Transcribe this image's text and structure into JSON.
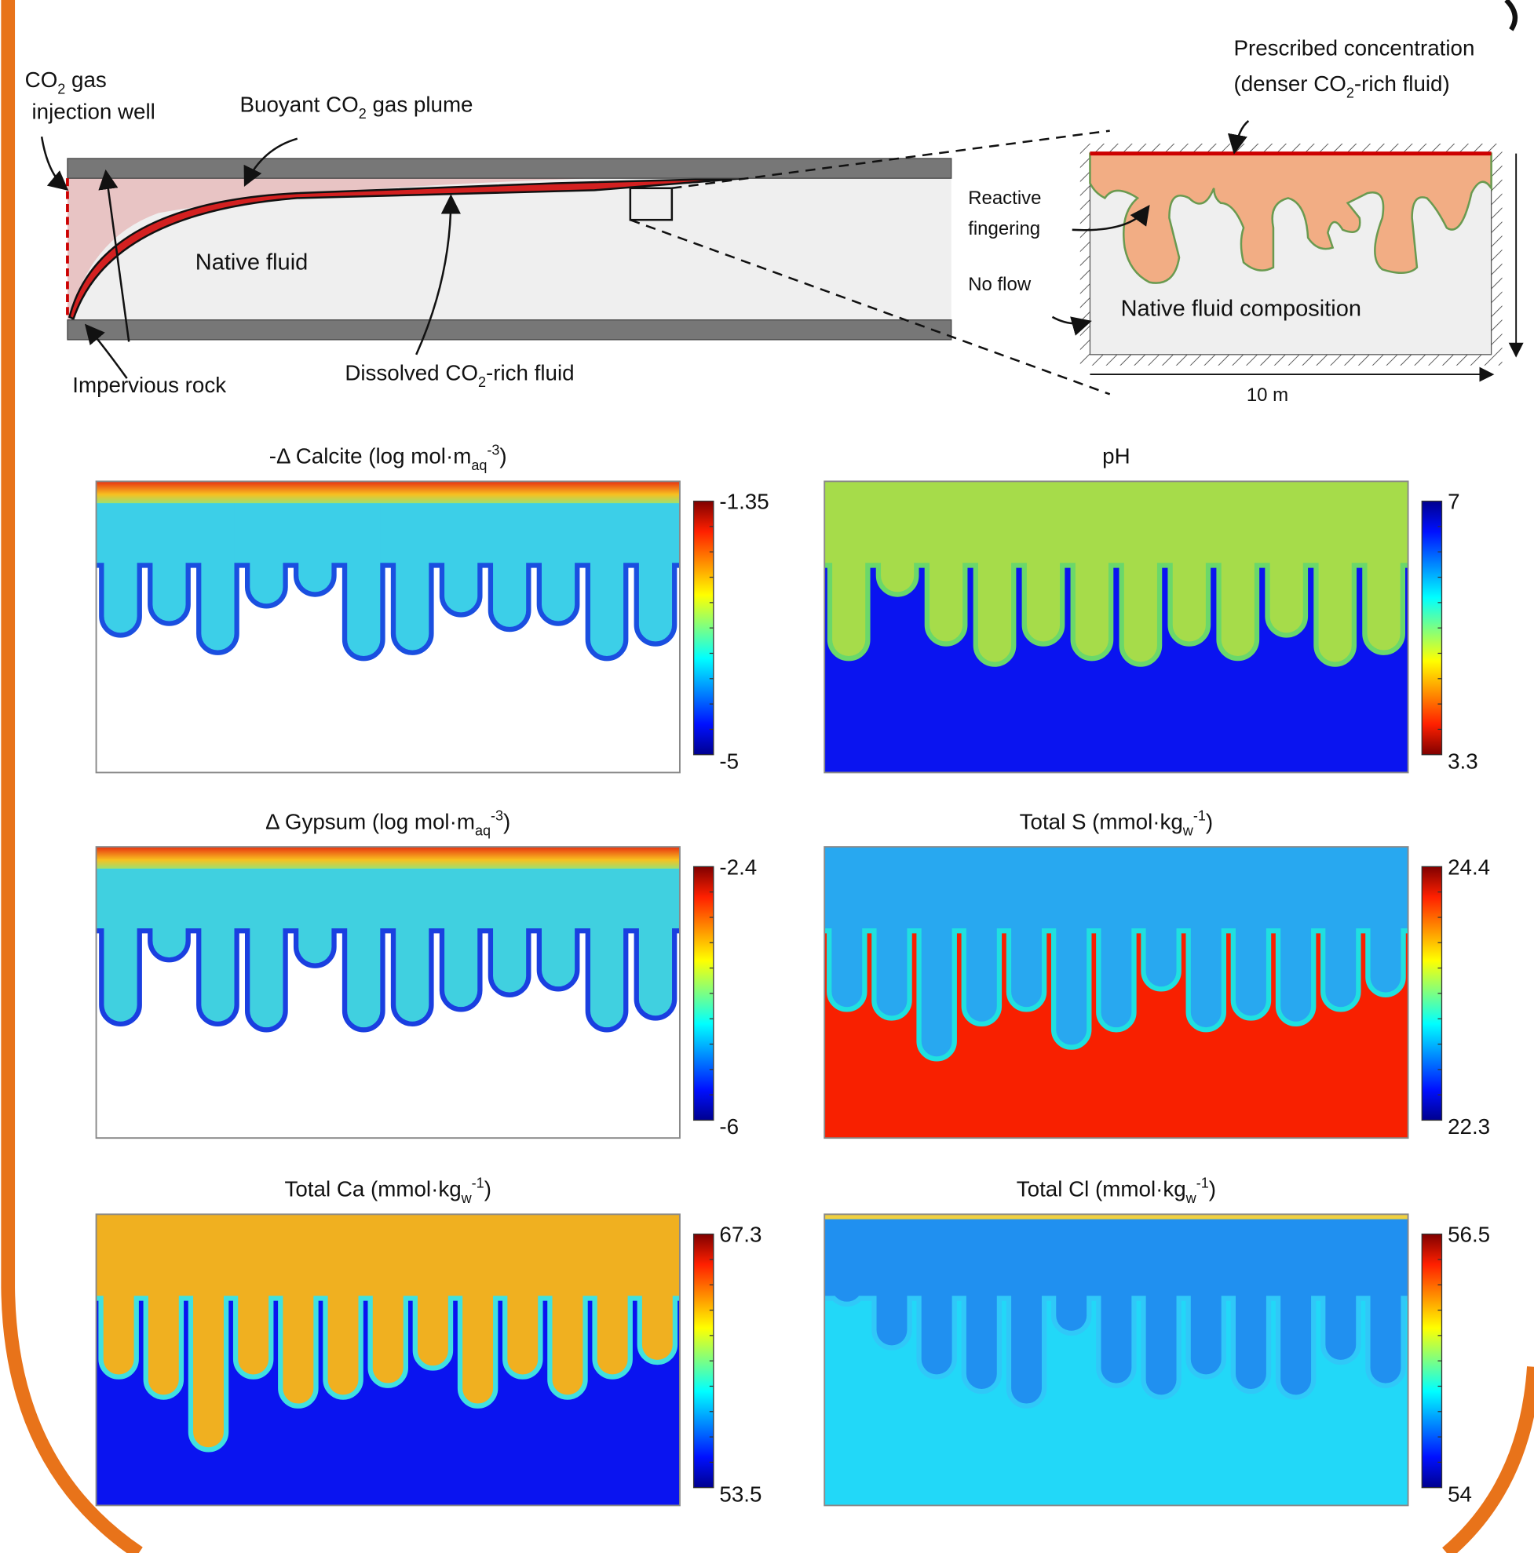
{
  "diagram": {
    "labels": {
      "well": [
        [
          "CO",
          {
            "sub": "2"
          },
          " gas"
        ],
        [
          "injection well"
        ]
      ],
      "plume": [
        [
          "Buoyant CO",
          {
            "sub": "2"
          },
          " gas plume"
        ]
      ],
      "native": [
        [
          "Native fluid"
        ]
      ],
      "rock": [
        [
          "Impervious rock"
        ]
      ],
      "dissolved": [
        [
          "Dissolved CO",
          {
            "sub": "2"
          },
          "-rich fluid"
        ]
      ],
      "prescribed": [
        [
          "Prescribed concentration"
        ],
        [
          "(denser CO",
          {
            "sub": "2"
          },
          "-rich fluid)"
        ]
      ],
      "reactive": [
        [
          "Reactive"
        ],
        [
          "fingering"
        ]
      ],
      "noflow": [
        [
          "No flow"
        ]
      ],
      "composition": [
        [
          "Native fluid composition"
        ]
      ],
      "length": [
        [
          "10 m"
        ]
      ]
    },
    "panels": [
      {
        "title": [
          "-Δ Calcite (log mol·m",
          {
            "sub": "aq"
          },
          {
            "sup": "-3"
          },
          ")"
        ],
        "max": -1.35,
        "min": -5
      },
      {
        "title": [
          "pH"
        ],
        "max": 7,
        "min": 3.3
      },
      {
        "title": [
          "Δ Gypsum (log mol·m",
          {
            "sub": "aq"
          },
          {
            "sup": "-3"
          },
          ")"
        ],
        "max": -2.4,
        "min": -6
      },
      {
        "title": [
          "Total S  (mmol·kg",
          {
            "sub": "w"
          },
          {
            "sup": "-1"
          },
          ")"
        ],
        "max": 24.4,
        "min": 22.3
      },
      {
        "title": [
          "Total Ca  (mmol·kg",
          {
            "sub": "w"
          },
          {
            "sup": "-1"
          },
          ")"
        ],
        "max": 67.3,
        "min": 53.5
      },
      {
        "title": [
          "Total Cl  (mmol·kg",
          {
            "sub": "w"
          },
          {
            "sup": "-1"
          },
          ")"
        ],
        "max": 56.5,
        "min": 54
      }
    ]
  }
}
